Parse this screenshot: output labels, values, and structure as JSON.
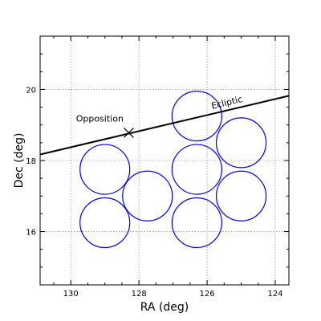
{
  "chart_data": {
    "type": "scatter",
    "xlabel": "RA (deg)",
    "ylabel": "Dec (deg)",
    "xlim": [
      130.9,
      123.6
    ],
    "ylim": [
      14.5,
      21.5
    ],
    "x_ticks": [
      130,
      128,
      126,
      124
    ],
    "y_ticks": [
      16,
      18,
      20
    ],
    "x_tick_labels": [
      "130",
      "128",
      "126",
      "124"
    ],
    "y_tick_labels": [
      "16",
      "18",
      "20"
    ],
    "grid": true,
    "ecliptic": {
      "label": "Ecliptic",
      "x": [
        130.9,
        123.6
      ],
      "y": [
        18.17,
        19.82
      ],
      "label_at": [
        125.4,
        19.55
      ]
    },
    "opposition": {
      "label": "Opposition",
      "x": 128.3,
      "y": 18.78,
      "label_at": [
        129.15,
        19.1
      ]
    },
    "fields": [
      {
        "ra": 129.0,
        "dec": 17.75,
        "radius_deg": 0.73
      },
      {
        "ra": 129.0,
        "dec": 16.25,
        "radius_deg": 0.73
      },
      {
        "ra": 127.75,
        "dec": 17.0,
        "radius_deg": 0.73
      },
      {
        "ra": 126.3,
        "dec": 19.25,
        "radius_deg": 0.73
      },
      {
        "ra": 126.3,
        "dec": 17.75,
        "radius_deg": 0.73
      },
      {
        "ra": 126.3,
        "dec": 16.25,
        "radius_deg": 0.73
      },
      {
        "ra": 125.0,
        "dec": 18.5,
        "radius_deg": 0.73
      },
      {
        "ra": 125.0,
        "dec": 17.0,
        "radius_deg": 0.73
      }
    ],
    "colors": {
      "fields": "#0000ee",
      "ecliptic": "#000000",
      "grid": "#999999"
    }
  }
}
